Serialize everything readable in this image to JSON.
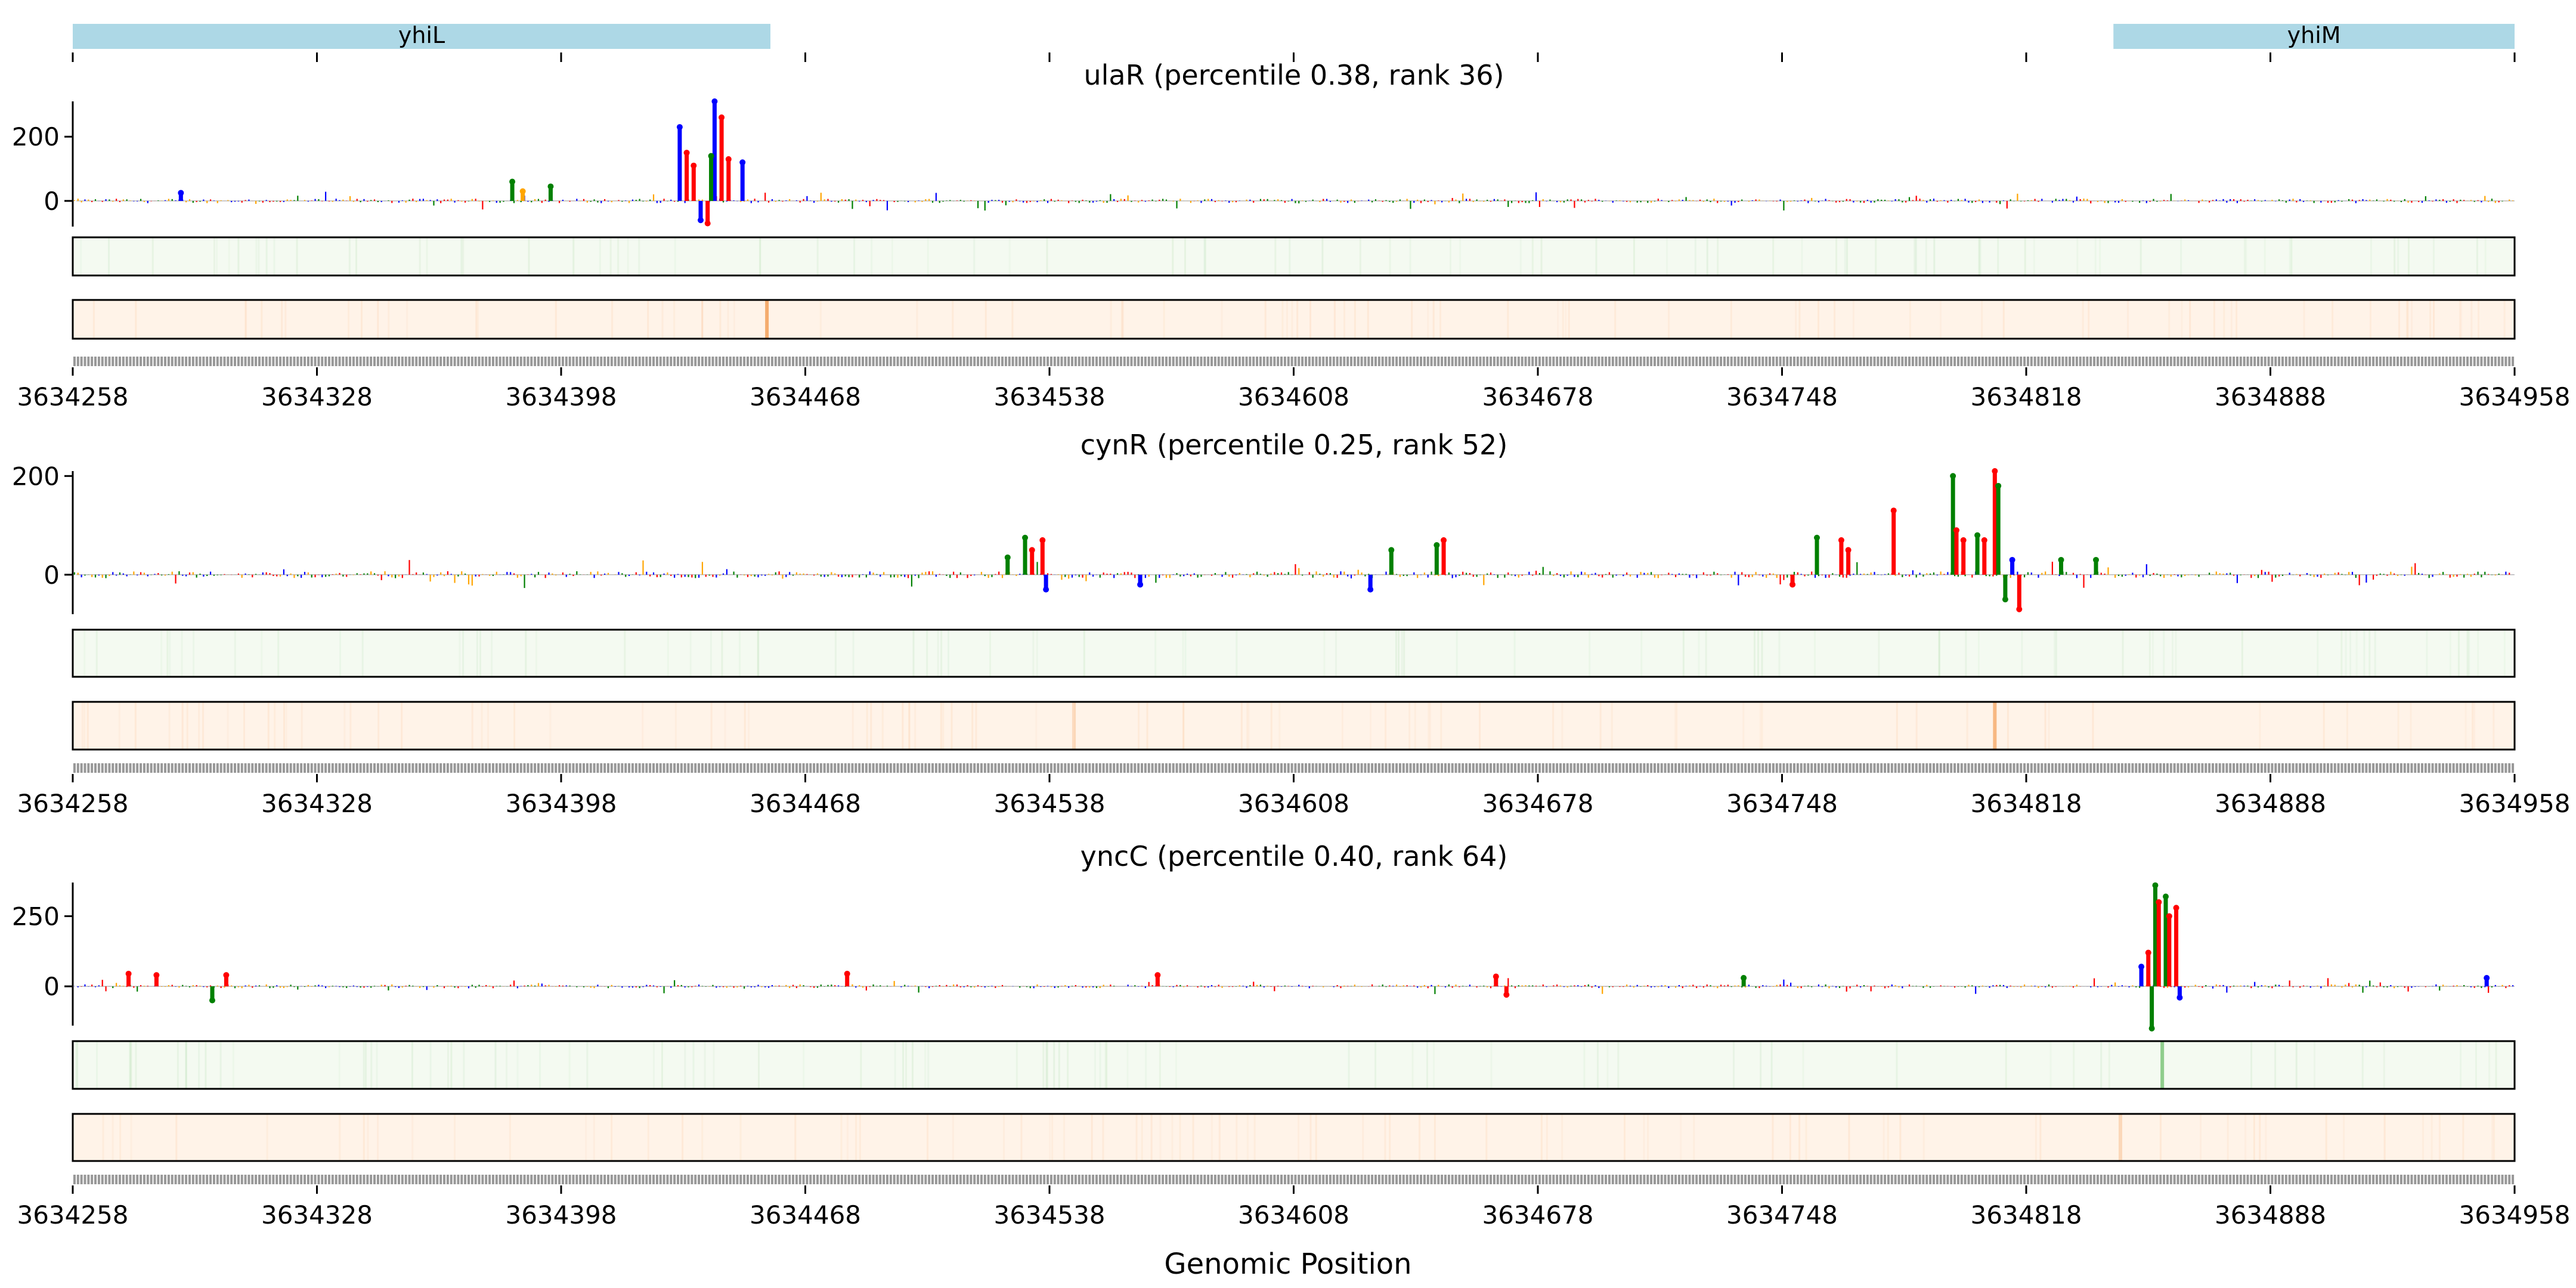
{
  "chart_data": {
    "type": "line",
    "xlabel": "Genomic Position",
    "xlim": [
      3634258,
      3634958
    ],
    "xticks": [
      3634258,
      3634328,
      3634398,
      3634468,
      3634538,
      3634608,
      3634678,
      3634748,
      3634818,
      3634888,
      3634958
    ],
    "tick_labels": [
      "3634258",
      "3634328",
      "3634398",
      "3634468",
      "3634538",
      "3634608",
      "3634678",
      "3634748",
      "3634818",
      "3634888",
      "3634958"
    ],
    "genes": [
      {
        "name": "yhiL",
        "start": 3634258,
        "end": 3634458
      },
      {
        "name": "yhiM",
        "start": 3634843,
        "end": 3634958
      }
    ],
    "colors": {
      "A": "#008000",
      "C": "#0000ff",
      "G": "#ffa500",
      "T": "#ff0000",
      "gene": "#add8e6",
      "track_green": "#f4faf1",
      "track_orange": "#fff3e8",
      "hit_green": "#7cc47a",
      "hit_orange": "#f4a460"
    },
    "panels": [
      {
        "title": "ulaR (percentile 0.38, rank 36)",
        "yticks": [
          0,
          200
        ],
        "ylim": [
          -80,
          310
        ],
        "peaks": [
          {
            "pos": 3634432,
            "value": 230,
            "base": "C"
          },
          {
            "pos": 3634434,
            "value": 150,
            "base": "T"
          },
          {
            "pos": 3634436,
            "value": 110,
            "base": "T"
          },
          {
            "pos": 3634438,
            "value": -60,
            "base": "C"
          },
          {
            "pos": 3634442,
            "value": 310,
            "base": "C"
          },
          {
            "pos": 3634444,
            "value": 260,
            "base": "T"
          },
          {
            "pos": 3634446,
            "value": 130,
            "base": "T"
          },
          {
            "pos": 3634450,
            "value": 120,
            "base": "C"
          },
          {
            "pos": 3634441,
            "value": 140,
            "base": "A"
          },
          {
            "pos": 3634440,
            "value": -70,
            "base": "T"
          },
          {
            "pos": 3634384,
            "value": 60,
            "base": "A"
          },
          {
            "pos": 3634395,
            "value": 45,
            "base": "A"
          },
          {
            "pos": 3634387,
            "value": 30,
            "base": "G"
          },
          {
            "pos": 3634289,
            "value": 25,
            "base": "C"
          }
        ],
        "green_hits": [],
        "orange_hits": [
          {
            "pos": 3634457,
            "strength": 0.9
          }
        ]
      },
      {
        "title": "cynR (percentile 0.25, rank 52)",
        "yticks": [
          0,
          200
        ],
        "ylim": [
          -80,
          210
        ],
        "peaks": [
          {
            "pos": 3634526,
            "value": 35,
            "base": "A"
          },
          {
            "pos": 3634531,
            "value": 75,
            "base": "A"
          },
          {
            "pos": 3634533,
            "value": 50,
            "base": "T"
          },
          {
            "pos": 3634536,
            "value": 70,
            "base": "T"
          },
          {
            "pos": 3634537,
            "value": -30,
            "base": "C"
          },
          {
            "pos": 3634564,
            "value": -20,
            "base": "C"
          },
          {
            "pos": 3634630,
            "value": -30,
            "base": "C"
          },
          {
            "pos": 3634636,
            "value": 50,
            "base": "A"
          },
          {
            "pos": 3634649,
            "value": 60,
            "base": "A"
          },
          {
            "pos": 3634651,
            "value": 70,
            "base": "T"
          },
          {
            "pos": 3634751,
            "value": -20,
            "base": "T"
          },
          {
            "pos": 3634758,
            "value": 75,
            "base": "A"
          },
          {
            "pos": 3634765,
            "value": 70,
            "base": "T"
          },
          {
            "pos": 3634767,
            "value": 50,
            "base": "T"
          },
          {
            "pos": 3634780,
            "value": 130,
            "base": "T"
          },
          {
            "pos": 3634797,
            "value": 200,
            "base": "A"
          },
          {
            "pos": 3634798,
            "value": 90,
            "base": "T"
          },
          {
            "pos": 3634800,
            "value": 70,
            "base": "T"
          },
          {
            "pos": 3634804,
            "value": 80,
            "base": "A"
          },
          {
            "pos": 3634806,
            "value": 70,
            "base": "T"
          },
          {
            "pos": 3634809,
            "value": 210,
            "base": "T"
          },
          {
            "pos": 3634810,
            "value": 180,
            "base": "A"
          },
          {
            "pos": 3634812,
            "value": -50,
            "base": "A"
          },
          {
            "pos": 3634814,
            "value": 30,
            "base": "C"
          },
          {
            "pos": 3634816,
            "value": -70,
            "base": "T"
          },
          {
            "pos": 3634828,
            "value": 30,
            "base": "A"
          },
          {
            "pos": 3634838,
            "value": 30,
            "base": "A"
          }
        ],
        "green_hits": [],
        "orange_hits": [
          {
            "pos": 3634545,
            "strength": 0.3
          },
          {
            "pos": 3634809,
            "strength": 0.75
          }
        ]
      },
      {
        "title": "yncC (percentile 0.40, rank 64)",
        "yticks": [
          0,
          250
        ],
        "ylim": [
          -140,
          370
        ],
        "peaks": [
          {
            "pos": 3634274,
            "value": 45,
            "base": "T"
          },
          {
            "pos": 3634282,
            "value": 40,
            "base": "T"
          },
          {
            "pos": 3634298,
            "value": -50,
            "base": "A"
          },
          {
            "pos": 3634302,
            "value": 40,
            "base": "T"
          },
          {
            "pos": 3634480,
            "value": 45,
            "base": "T"
          },
          {
            "pos": 3634569,
            "value": 40,
            "base": "T"
          },
          {
            "pos": 3634666,
            "value": 35,
            "base": "T"
          },
          {
            "pos": 3634669,
            "value": -30,
            "base": "T"
          },
          {
            "pos": 3634737,
            "value": 30,
            "base": "A"
          },
          {
            "pos": 3634851,
            "value": 70,
            "base": "C"
          },
          {
            "pos": 3634853,
            "value": 120,
            "base": "T"
          },
          {
            "pos": 3634854,
            "value": -150,
            "base": "A"
          },
          {
            "pos": 3634855,
            "value": 360,
            "base": "A"
          },
          {
            "pos": 3634856,
            "value": 300,
            "base": "T"
          },
          {
            "pos": 3634858,
            "value": 320,
            "base": "A"
          },
          {
            "pos": 3634859,
            "value": 250,
            "base": "T"
          },
          {
            "pos": 3634861,
            "value": 280,
            "base": "T"
          },
          {
            "pos": 3634862,
            "value": -40,
            "base": "C"
          },
          {
            "pos": 3634950,
            "value": 30,
            "base": "C"
          }
        ],
        "green_hits": [
          {
            "pos": 3634857,
            "strength": 0.85
          }
        ],
        "orange_hits": [
          {
            "pos": 3634845,
            "strength": 0.35
          }
        ]
      }
    ]
  }
}
